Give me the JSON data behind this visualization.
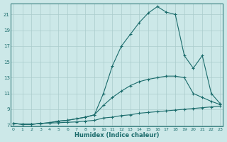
{
  "xlabel": "Humidex (Indice chaleur)",
  "background_color": "#cce8e8",
  "grid_color": "#aacccc",
  "line_color": "#1a6b6b",
  "xlim": [
    -0.3,
    23.3
  ],
  "ylim": [
    6.8,
    22.4
  ],
  "xticks": [
    0,
    1,
    2,
    3,
    4,
    5,
    6,
    7,
    8,
    9,
    10,
    11,
    12,
    13,
    14,
    15,
    16,
    17,
    18,
    19,
    20,
    21,
    22,
    23
  ],
  "yticks": [
    7,
    9,
    11,
    13,
    15,
    17,
    19,
    21
  ],
  "series1_x": [
    0,
    1,
    2,
    3,
    4,
    5,
    6,
    7,
    8,
    9,
    10,
    11,
    12,
    13,
    14,
    15,
    16,
    17,
    18,
    19,
    20,
    21,
    22,
    23
  ],
  "series1_y": [
    7.2,
    7.1,
    7.1,
    7.2,
    7.25,
    7.3,
    7.35,
    7.4,
    7.5,
    7.6,
    7.9,
    8.0,
    8.2,
    8.3,
    8.5,
    8.6,
    8.7,
    8.8,
    8.9,
    9.0,
    9.1,
    9.2,
    9.3,
    9.4
  ],
  "series2_x": [
    0,
    1,
    2,
    3,
    4,
    5,
    6,
    7,
    8,
    9,
    10,
    11,
    12,
    13,
    14,
    15,
    16,
    17,
    18,
    19,
    20,
    21,
    22,
    23
  ],
  "series2_y": [
    7.2,
    7.1,
    7.1,
    7.2,
    7.3,
    7.5,
    7.6,
    7.8,
    8.0,
    8.3,
    9.5,
    10.5,
    11.3,
    12.0,
    12.5,
    12.8,
    13.0,
    13.2,
    13.2,
    13.0,
    11.0,
    10.5,
    10.0,
    9.6
  ],
  "series3_x": [
    0,
    1,
    2,
    3,
    4,
    5,
    6,
    7,
    8,
    9,
    10,
    11,
    12,
    13,
    14,
    15,
    16,
    17,
    18,
    19,
    20,
    21,
    22,
    23
  ],
  "series3_y": [
    7.2,
    7.1,
    7.1,
    7.2,
    7.3,
    7.5,
    7.6,
    7.8,
    8.0,
    8.3,
    11.0,
    14.5,
    17.0,
    18.5,
    20.0,
    21.2,
    22.0,
    21.3,
    21.0,
    15.8,
    14.2,
    15.8,
    11.0,
    9.7
  ]
}
